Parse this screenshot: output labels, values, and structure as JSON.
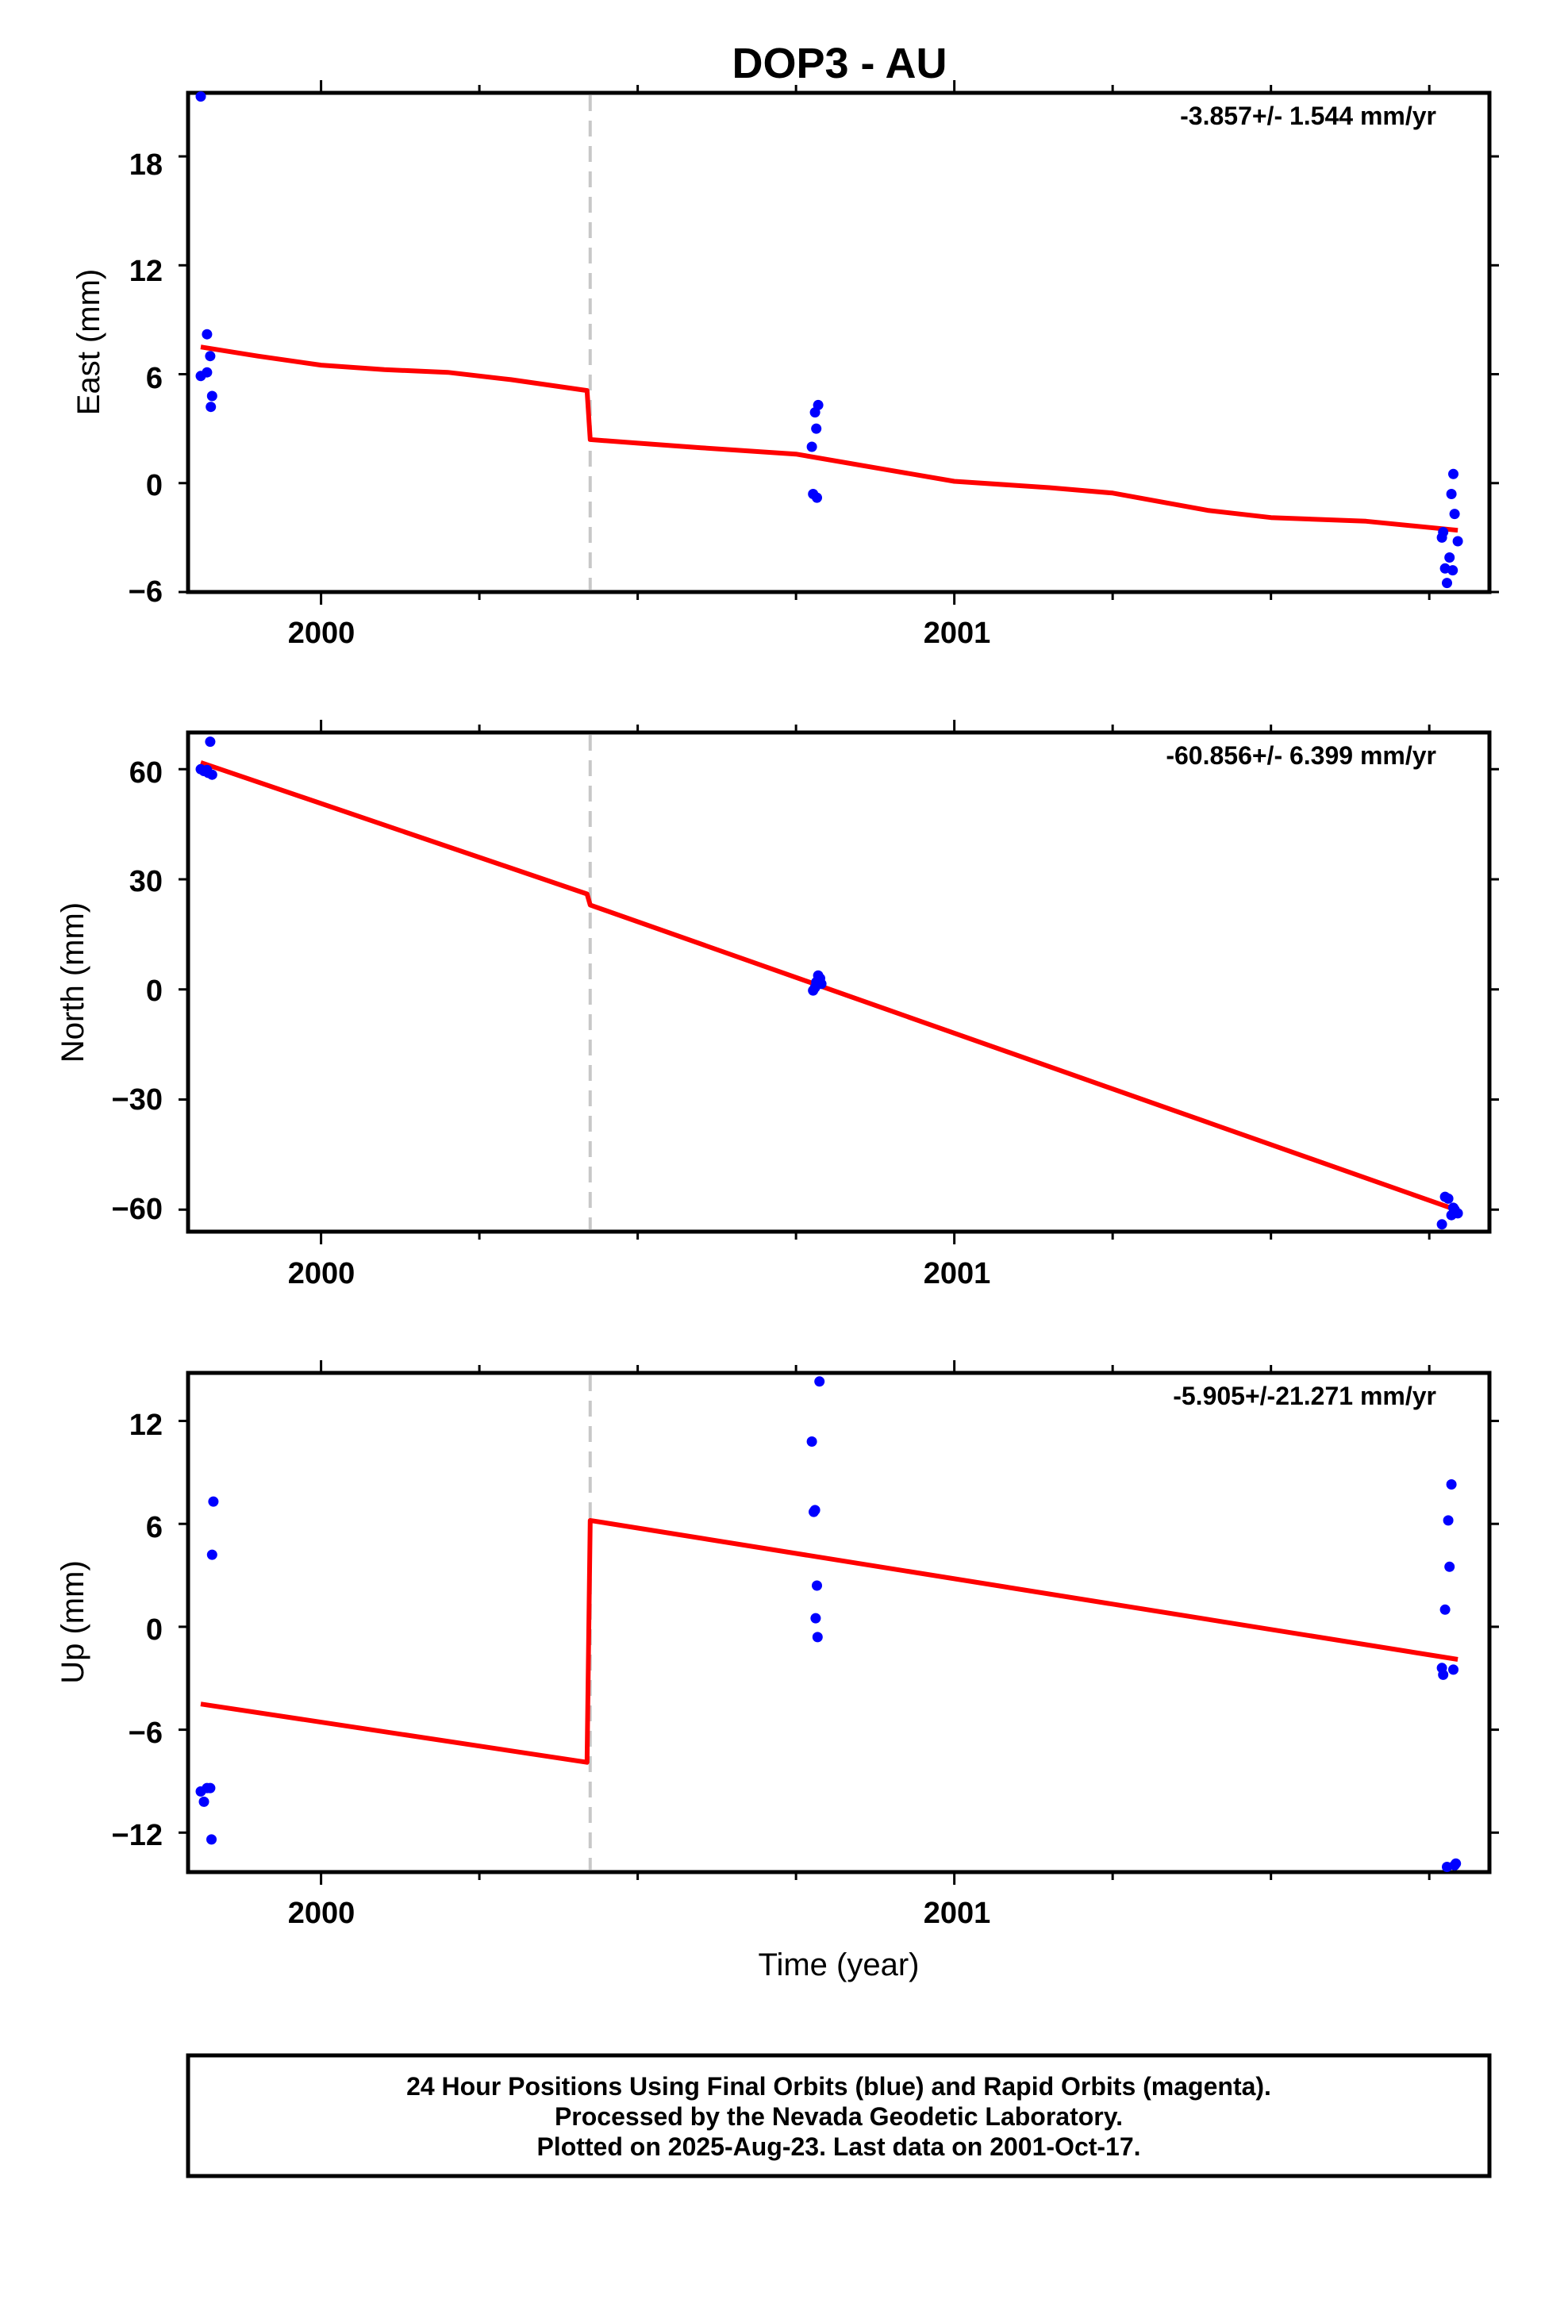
{
  "chart_data": {
    "type": "scatter",
    "title": "DOP3 - AU",
    "xlabel": "Time (year)",
    "x_ticks": [
      "2000",
      "2001"
    ],
    "xlim": [
      1999.79,
      2001.845
    ],
    "point_color": "#0000ff",
    "fit_color": "#ff0000",
    "break_color": "#c8c8c8",
    "offset_epoch": 2000.425,
    "panels": [
      {
        "name": "east",
        "ylabel": "East (mm)",
        "rate": "-3.857+/- 1.544 mm/yr",
        "ylim": [
          -6,
          21.5
        ],
        "yticks": [
          "18",
          "12",
          "6",
          "0",
          "−6"
        ],
        "ytick_values": [
          18,
          12,
          6,
          0,
          -6
        ],
        "points": [
          [
            1999.81,
            21.3
          ],
          [
            1999.82,
            8.2
          ],
          [
            1999.81,
            5.9
          ],
          [
            1999.82,
            6.1
          ],
          [
            1999.825,
            7.0
          ],
          [
            1999.828,
            4.8
          ],
          [
            1999.826,
            4.2
          ],
          [
            2000.775,
            2.0
          ],
          [
            2000.78,
            3.9
          ],
          [
            2000.785,
            4.3
          ],
          [
            2000.782,
            3.0
          ],
          [
            2000.777,
            -0.6
          ],
          [
            2000.783,
            -0.8
          ],
          [
            2001.77,
            -3.0
          ],
          [
            2001.772,
            -2.7
          ],
          [
            2001.775,
            -4.7
          ],
          [
            2001.778,
            -5.5
          ],
          [
            2001.782,
            -4.1
          ],
          [
            2001.785,
            -0.6
          ],
          [
            2001.788,
            0.5
          ],
          [
            2001.79,
            -1.7
          ],
          [
            2001.787,
            -4.8
          ],
          [
            2001.795,
            -3.2
          ]
        ],
        "fit": [
          [
            1999.81,
            7.5
          ],
          [
            1999.9,
            7.0
          ],
          [
            2000.0,
            6.5
          ],
          [
            2000.1,
            6.25
          ],
          [
            2000.2,
            6.1
          ],
          [
            2000.3,
            5.7
          ],
          [
            2000.42,
            5.1
          ],
          [
            2000.425,
            2.4
          ],
          [
            2000.5,
            2.2
          ],
          [
            2000.6,
            1.95
          ],
          [
            2000.75,
            1.6
          ],
          [
            2000.9,
            0.7
          ],
          [
            2001.0,
            0.1
          ],
          [
            2001.15,
            -0.25
          ],
          [
            2001.25,
            -0.55
          ],
          [
            2001.4,
            -1.5
          ],
          [
            2001.5,
            -1.9
          ],
          [
            2001.65,
            -2.1
          ],
          [
            2001.795,
            -2.6
          ]
        ]
      },
      {
        "name": "north",
        "ylabel": "North (mm)",
        "rate": "-60.856+/- 6.399 mm/yr",
        "ylim": [
          -66,
          70
        ],
        "yticks": [
          "60",
          "30",
          "0",
          "−30",
          "−60"
        ],
        "ytick_values": [
          60,
          30,
          0,
          -30,
          -60
        ],
        "points": [
          [
            1999.81,
            60.0
          ],
          [
            1999.815,
            59.5
          ],
          [
            1999.82,
            59.8
          ],
          [
            1999.825,
            67.5
          ],
          [
            1999.828,
            58.5
          ],
          [
            1999.822,
            59.0
          ],
          [
            2000.777,
            -0.3
          ],
          [
            2000.78,
            0.5
          ],
          [
            2000.785,
            3.8
          ],
          [
            2000.788,
            3.0
          ],
          [
            2000.79,
            1.5
          ],
          [
            2000.782,
            2.0
          ],
          [
            2001.77,
            -64.0
          ],
          [
            2001.775,
            -56.5
          ],
          [
            2001.78,
            -57.0
          ],
          [
            2001.785,
            -61.5
          ],
          [
            2001.79,
            -60.0
          ],
          [
            2001.795,
            -61.0
          ],
          [
            2001.788,
            -59.5
          ]
        ],
        "fit": [
          [
            1999.81,
            61.8
          ],
          [
            2000.42,
            26.0
          ],
          [
            2000.425,
            23.0
          ],
          [
            2001.795,
            -60.2
          ]
        ]
      },
      {
        "name": "up",
        "ylabel": "Up (mm)",
        "rate": "-5.905+/-21.271 mm/yr",
        "ylim": [
          -14.3,
          14.8
        ],
        "yticks": [
          "12",
          "6",
          "0",
          "−6",
          "−12"
        ],
        "ytick_values": [
          12,
          6,
          0,
          -6,
          -12
        ],
        "points": [
          [
            1999.81,
            -9.6
          ],
          [
            1999.815,
            -10.2
          ],
          [
            1999.82,
            -9.4
          ],
          [
            1999.825,
            -9.4
          ],
          [
            1999.827,
            -12.4
          ],
          [
            1999.828,
            4.2
          ],
          [
            1999.83,
            7.3
          ],
          [
            2000.775,
            10.8
          ],
          [
            2000.778,
            6.7
          ],
          [
            2000.78,
            6.8
          ],
          [
            2000.783,
            2.4
          ],
          [
            2000.781,
            0.5
          ],
          [
            2000.784,
            -0.6
          ],
          [
            2000.787,
            14.3
          ],
          [
            2001.77,
            -2.4
          ],
          [
            2001.772,
            -2.8
          ],
          [
            2001.775,
            1.0
          ],
          [
            2001.78,
            6.2
          ],
          [
            2001.782,
            3.5
          ],
          [
            2001.785,
            8.3
          ],
          [
            2001.788,
            -2.5
          ],
          [
            2001.778,
            -14.0
          ],
          [
            2001.79,
            -13.9
          ],
          [
            2001.792,
            -13.8
          ]
        ],
        "fit": [
          [
            1999.81,
            -4.5
          ],
          [
            2000.42,
            -7.9
          ],
          [
            2000.425,
            6.2
          ],
          [
            2001.795,
            -1.9
          ]
        ]
      }
    ]
  },
  "footer": {
    "line1": "24 Hour Positions Using Final Orbits (blue) and Rapid Orbits (magenta).",
    "line2": "Processed by the Nevada Geodetic Laboratory.",
    "line3": "Plotted on 2025-Aug-23. Last data on 2001-Oct-17."
  }
}
